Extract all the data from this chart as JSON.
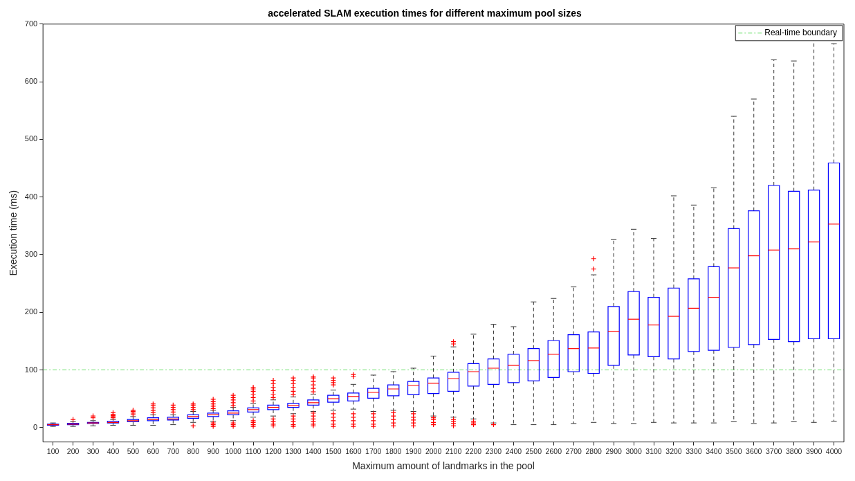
{
  "chart_data": {
    "type": "box",
    "title": "accelerated SLAM execution times for different maximum pool sizes",
    "xlabel": "Maximum amount of landmarks in the pool",
    "ylabel": "Execution time (ms)",
    "categories": [
      "100",
      "200",
      "300",
      "400",
      "500",
      "600",
      "700",
      "800",
      "900",
      "1000",
      "1100",
      "1200",
      "1300",
      "1400",
      "1500",
      "1600",
      "1700",
      "1800",
      "1900",
      "2000",
      "2100",
      "2200",
      "2300",
      "2400",
      "2500",
      "2600",
      "2700",
      "2800",
      "2900",
      "3000",
      "3100",
      "3200",
      "3300",
      "3400",
      "3500",
      "3600",
      "3700",
      "3800",
      "3900",
      "4000"
    ],
    "ylim": [
      -25,
      700
    ],
    "yticks": [
      0,
      100,
      200,
      300,
      400,
      500,
      600,
      700
    ],
    "grid": false,
    "legend": "top right",
    "ref_lines": [
      {
        "axis": "y",
        "value": 100,
        "label": "Real-time boundary",
        "color": "#66dd66",
        "line_style": "dashed"
      }
    ],
    "series": [
      {
        "color": "#0000ff",
        "boxes": [
          {
            "low": 2,
            "q1": 4,
            "median": 5,
            "q3": 6,
            "high": 8
          },
          {
            "low": 2,
            "q1": 5,
            "median": 6,
            "q3": 7.5,
            "high": 10,
            "outliers": [
              14
            ]
          },
          {
            "low": 3,
            "q1": 7,
            "median": 8,
            "q3": 9,
            "high": 12,
            "outliers": [
              17,
              20
            ]
          },
          {
            "low": 4,
            "q1": 8,
            "median": 9,
            "q3": 11,
            "high": 14,
            "outliers": [
              17,
              19,
              21,
              23,
              26
            ]
          },
          {
            "low": 4,
            "q1": 10,
            "median": 12,
            "q3": 14,
            "high": 19,
            "outliers": [
              22,
              25,
              28,
              30
            ]
          },
          {
            "low": 4,
            "q1": 12,
            "median": 14,
            "q3": 17,
            "high": 22,
            "outliers": [
              26,
              30,
              34,
              38,
              41
            ]
          },
          {
            "low": 5,
            "q1": 13,
            "median": 15,
            "q3": 18,
            "high": 22,
            "outliers": [
              27,
              31,
              35,
              39
            ]
          },
          {
            "low": 9,
            "q1": 16,
            "median": 19,
            "q3": 22,
            "high": 28,
            "outliers": [
              3,
              31,
              35,
              39,
              41
            ]
          },
          {
            "low": 11,
            "q1": 19,
            "median": 22,
            "q3": 25,
            "high": 30,
            "outliers": [
              2,
              5,
              8,
              33,
              37,
              41,
              45,
              49
            ]
          },
          {
            "low": 12,
            "q1": 22,
            "median": 25,
            "q3": 29,
            "high": 35,
            "outliers": [
              2,
              5,
              8,
              38,
              43,
              48,
              52,
              56
            ]
          },
          {
            "low": 18,
            "q1": 27,
            "median": 31,
            "q3": 34,
            "high": 42,
            "outliers": [
              2,
              5,
              9,
              12,
              46,
              52,
              58,
              63,
              67,
              70
            ]
          },
          {
            "low": 20,
            "q1": 31,
            "median": 35,
            "q3": 39,
            "high": 48,
            "outliers": [
              3,
              6,
              10,
              15,
              52,
              58,
              64,
              70,
              76,
              82
            ]
          },
          {
            "low": 24,
            "q1": 35,
            "median": 38,
            "q3": 42,
            "high": 53,
            "outliers": [
              2,
              5,
              10,
              15,
              20,
              57,
              63,
              70,
              76,
              82,
              86
            ]
          },
          {
            "low": 28,
            "q1": 39,
            "median": 43,
            "q3": 48,
            "high": 58,
            "outliers": [
              3,
              6,
              10,
              15,
              20,
              25,
              62,
              68,
              74,
              80,
              86,
              88
            ]
          },
          {
            "low": 30,
            "q1": 44,
            "median": 50,
            "q3": 56,
            "high": 65,
            "outliers": [
              2,
              6,
              12,
              18,
              24,
              74,
              78,
              82,
              86
            ]
          },
          {
            "low": 32,
            "q1": 46,
            "median": 54,
            "q3": 60,
            "high": 75,
            "outliers": [
              2,
              6,
              12,
              18,
              24,
              88,
              92
            ]
          },
          {
            "low": 28,
            "q1": 51,
            "median": 61,
            "q3": 68,
            "high": 91,
            "outliers": [
              2,
              6,
              12,
              18,
              24
            ]
          },
          {
            "low": 30,
            "q1": 55,
            "median": 67,
            "q3": 74,
            "high": 97,
            "outliers": [
              3,
              8,
              14,
              20,
              26
            ]
          },
          {
            "low": 28,
            "q1": 57,
            "median": 73,
            "q3": 80,
            "high": 103,
            "outliers": [
              3,
              8,
              13,
              18,
              24
            ]
          },
          {
            "low": 20,
            "q1": 59,
            "median": 77,
            "q3": 86,
            "high": 124,
            "outliers": [
              5,
              9,
              14,
              17
            ]
          },
          {
            "low": 18,
            "q1": 63,
            "median": 85,
            "q3": 96,
            "high": 140,
            "outliers": [
              3,
              7,
              11,
              14,
              145,
              149
            ]
          },
          {
            "low": 15,
            "q1": 72,
            "median": 97,
            "q3": 111,
            "high": 162,
            "outliers": [
              5,
              8,
              11
            ]
          },
          {
            "low": 8,
            "q1": 75,
            "median": 103,
            "q3": 119,
            "high": 179,
            "outliers": [
              5
            ]
          },
          {
            "low": 5,
            "q1": 78,
            "median": 108,
            "q3": 127,
            "high": 175
          },
          {
            "low": 5,
            "q1": 81,
            "median": 116,
            "q3": 137,
            "high": 218
          },
          {
            "low": 5,
            "q1": 87,
            "median": 127,
            "q3": 151,
            "high": 224
          },
          {
            "low": 7,
            "q1": 97,
            "median": 137,
            "q3": 161,
            "high": 244
          },
          {
            "low": 9,
            "q1": 94,
            "median": 138,
            "q3": 166,
            "high": 265,
            "outliers": [
              275,
              293
            ]
          },
          {
            "low": 7,
            "q1": 108,
            "median": 167,
            "q3": 210,
            "high": 326
          },
          {
            "low": 7,
            "q1": 126,
            "median": 188,
            "q3": 236,
            "high": 344
          },
          {
            "low": 9,
            "q1": 123,
            "median": 178,
            "q3": 226,
            "high": 328
          },
          {
            "low": 8,
            "q1": 119,
            "median": 193,
            "q3": 242,
            "high": 402
          },
          {
            "low": 8,
            "q1": 132,
            "median": 207,
            "q3": 258,
            "high": 386
          },
          {
            "low": 8,
            "q1": 134,
            "median": 226,
            "q3": 279,
            "high": 416
          },
          {
            "low": 10,
            "q1": 139,
            "median": 277,
            "q3": 345,
            "high": 540
          },
          {
            "low": 7,
            "q1": 144,
            "median": 298,
            "q3": 376,
            "high": 570
          },
          {
            "low": 8,
            "q1": 153,
            "median": 308,
            "q3": 420,
            "high": 638
          },
          {
            "low": 10,
            "q1": 149,
            "median": 310,
            "q3": 410,
            "high": 636
          },
          {
            "low": 9,
            "q1": 154,
            "median": 322,
            "q3": 412,
            "high": 680
          },
          {
            "low": 11,
            "q1": 154,
            "median": 353,
            "q3": 459,
            "high": 666
          }
        ]
      }
    ]
  }
}
